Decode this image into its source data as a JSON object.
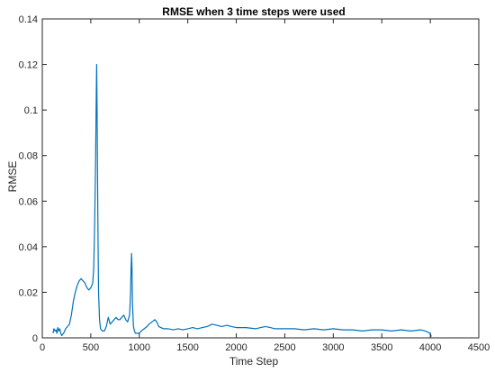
{
  "chart_data": {
    "type": "line",
    "title": "RMSE when 3 time steps were used",
    "xlabel": "Time Step",
    "ylabel": "RMSE",
    "xlim": [
      0,
      4500
    ],
    "ylim": [
      0,
      0.14
    ],
    "x_ticks": [
      0,
      500,
      1000,
      1500,
      2000,
      2500,
      3000,
      3500,
      4000,
      4500
    ],
    "x_tick_labels": [
      "0",
      "500",
      "1000",
      "1500",
      "2000",
      "2500",
      "3000",
      "3500",
      "4000",
      "4500"
    ],
    "y_ticks": [
      0,
      0.02,
      0.04,
      0.06,
      0.08,
      0.1,
      0.12,
      0.14
    ],
    "y_tick_labels": [
      "0",
      "0.02",
      "0.04",
      "0.06",
      "0.08",
      "0.1",
      "0.12",
      "0.14"
    ],
    "grid": false,
    "legend": "none",
    "series": [
      {
        "color": "#0072BD",
        "x": [
          110,
          120,
          130,
          140,
          150,
          160,
          170,
          180,
          190,
          200,
          220,
          240,
          260,
          280,
          300,
          320,
          340,
          360,
          380,
          400,
          420,
          440,
          460,
          480,
          500,
          520,
          530,
          540,
          550,
          555,
          560,
          565,
          570,
          575,
          580,
          590,
          600,
          620,
          640,
          660,
          680,
          700,
          720,
          740,
          760,
          780,
          800,
          820,
          840,
          860,
          880,
          900,
          910,
          915,
          920,
          925,
          930,
          940,
          950,
          960,
          980,
          1000,
          1020,
          1050,
          1080,
          1100,
          1130,
          1160,
          1180,
          1200,
          1250,
          1300,
          1350,
          1400,
          1450,
          1500,
          1550,
          1600,
          1650,
          1700,
          1750,
          1800,
          1850,
          1900,
          1950,
          2000,
          2100,
          2200,
          2250,
          2300,
          2350,
          2400,
          2500,
          2600,
          2700,
          2800,
          2900,
          3000,
          3100,
          3200,
          3300,
          3400,
          3500,
          3600,
          3700,
          3800,
          3900,
          3950,
          4000,
          4010
        ],
        "y": [
          0.002,
          0.004,
          0.003,
          0.0035,
          0.002,
          0.0045,
          0.003,
          0.004,
          0.002,
          0.001,
          0.002,
          0.004,
          0.005,
          0.006,
          0.01,
          0.016,
          0.02,
          0.023,
          0.025,
          0.026,
          0.025,
          0.024,
          0.022,
          0.021,
          0.022,
          0.024,
          0.03,
          0.05,
          0.08,
          0.1,
          0.12,
          0.1,
          0.07,
          0.04,
          0.02,
          0.008,
          0.004,
          0.003,
          0.003,
          0.005,
          0.009,
          0.006,
          0.007,
          0.008,
          0.009,
          0.008,
          0.008,
          0.009,
          0.01,
          0.008,
          0.007,
          0.01,
          0.02,
          0.03,
          0.037,
          0.03,
          0.015,
          0.005,
          0.003,
          0.002,
          0.002,
          0.002,
          0.003,
          0.004,
          0.005,
          0.006,
          0.007,
          0.008,
          0.007,
          0.005,
          0.004,
          0.004,
          0.0035,
          0.004,
          0.0035,
          0.004,
          0.0045,
          0.004,
          0.0045,
          0.005,
          0.006,
          0.0055,
          0.005,
          0.0055,
          0.005,
          0.0045,
          0.0045,
          0.004,
          0.0045,
          0.005,
          0.0045,
          0.004,
          0.004,
          0.004,
          0.0035,
          0.004,
          0.0035,
          0.004,
          0.0035,
          0.0035,
          0.003,
          0.0035,
          0.0035,
          0.003,
          0.0035,
          0.003,
          0.0035,
          0.003,
          0.002,
          0.0005
        ]
      }
    ]
  }
}
